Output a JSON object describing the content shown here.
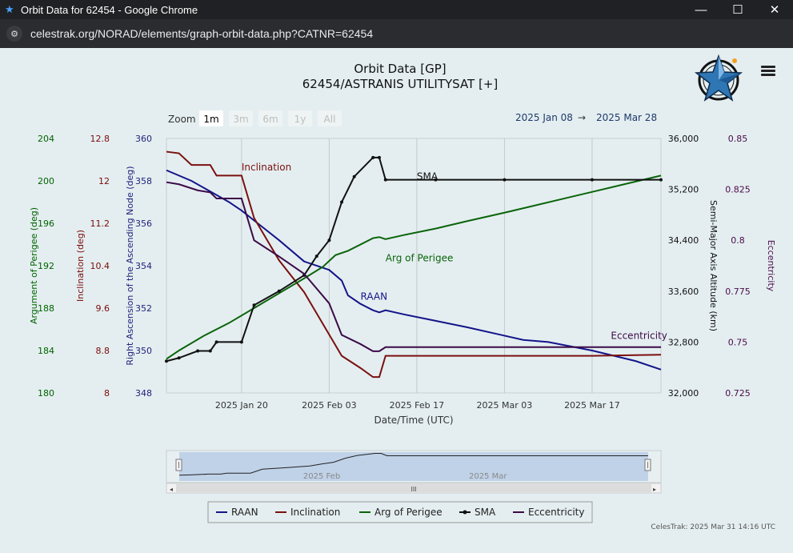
{
  "window": {
    "title": "Orbit Data for 62454 - Google Chrome",
    "minimize_icon": "minimize-icon",
    "maximize_icon": "maximize-icon",
    "close_icon": "close-icon"
  },
  "address_bar": {
    "url": "celestrak.org/NORAD/elements/graph-orbit-data.php?CATNR=62454"
  },
  "chart_data": {
    "type": "line",
    "title": "Orbit Data [GP]",
    "subtitle": "62454/ASTRANIS UTILITYSAT [+]",
    "xlabel": "Date/Time (UTC)",
    "zoom": {
      "label": "Zoom",
      "buttons": [
        "1m",
        "3m",
        "6m",
        "1y",
        "All"
      ],
      "selected": "1m"
    },
    "date_range": {
      "from": "2025 Jan 08",
      "arrow": "→",
      "to": "2025 Mar 28"
    },
    "x_range": [
      "2025-01-08",
      "2025-03-28"
    ],
    "x_ticks": [
      {
        "date": "2025-01-20",
        "label": "2025 Jan 20"
      },
      {
        "date": "2025-02-03",
        "label": "2025 Feb 03"
      },
      {
        "date": "2025-02-17",
        "label": "2025 Feb 17"
      },
      {
        "date": "2025-03-03",
        "label": "2025 Mar 03"
      },
      {
        "date": "2025-03-17",
        "label": "2025 Mar 17"
      }
    ],
    "axes": [
      {
        "id": "argp",
        "label": "Argument of Perigee (deg)",
        "range": [
          180,
          204
        ],
        "ticks": [
          "180",
          "184",
          "188",
          "192",
          "196",
          "200",
          "204"
        ],
        "color": "#006400",
        "side": "left"
      },
      {
        "id": "inc",
        "label": "Inclination (deg)",
        "range": [
          8,
          12.8
        ],
        "ticks": [
          "8",
          "8.8",
          "9.6",
          "10.4",
          "11.2",
          "12",
          "12.8"
        ],
        "color": "#7b0a0a",
        "side": "left"
      },
      {
        "id": "raan",
        "label": "Right Ascension of the Ascending Node (deg)",
        "range": [
          348,
          360
        ],
        "ticks": [
          "348",
          "350",
          "352",
          "354",
          "356",
          "358",
          "360"
        ],
        "color": "#1f1f7a",
        "side": "left"
      },
      {
        "id": "sma",
        "label": "Semi-Major Axis Altitude (km)",
        "range": [
          32000,
          36000
        ],
        "ticks": [
          "32,000",
          "32,800",
          "33,600",
          "34,400",
          "35,200",
          "36,000"
        ],
        "color": "#111111",
        "side": "right"
      },
      {
        "id": "ecc",
        "label": "Eccentricity",
        "range": [
          0.725,
          0.85
        ],
        "ticks": [
          "0.725",
          "0.75",
          "0.775",
          "0.8",
          "0.825",
          "0.85"
        ],
        "color": "#4a0a4a",
        "side": "right"
      }
    ],
    "series": [
      {
        "name": "RAAN",
        "axis": "raan",
        "color": "#14148a",
        "label_at": {
          "x": "2025-02-08",
          "y": 352.4
        },
        "points": [
          [
            "2025-01-08",
            358.5
          ],
          [
            "2025-01-12",
            358.0
          ],
          [
            "2025-01-15",
            357.5
          ],
          [
            "2025-01-18",
            357.0
          ],
          [
            "2025-01-20",
            356.6
          ],
          [
            "2025-01-23",
            355.9
          ],
          [
            "2025-01-26",
            355.2
          ],
          [
            "2025-01-30",
            354.2
          ],
          [
            "2025-02-03",
            353.8
          ],
          [
            "2025-02-05",
            353.3
          ],
          [
            "2025-02-06",
            352.6
          ],
          [
            "2025-02-08",
            352.2
          ],
          [
            "2025-02-10",
            351.9
          ],
          [
            "2025-02-11",
            351.8
          ],
          [
            "2025-02-12",
            351.9
          ],
          [
            "2025-02-15",
            351.7
          ],
          [
            "2025-02-20",
            351.4
          ],
          [
            "2025-02-25",
            351.1
          ],
          [
            "2025-03-03",
            350.7
          ],
          [
            "2025-03-06",
            350.5
          ],
          [
            "2025-03-10",
            350.4
          ],
          [
            "2025-03-17",
            350.0
          ],
          [
            "2025-03-24",
            349.5
          ],
          [
            "2025-03-28",
            349.1
          ]
        ]
      },
      {
        "name": "Inclination",
        "axis": "inc",
        "color": "#7b1010",
        "label_at": {
          "x": "2025-01-20",
          "y": 12.2
        },
        "points": [
          [
            "2025-01-08",
            12.55
          ],
          [
            "2025-01-10",
            12.52
          ],
          [
            "2025-01-12",
            12.3
          ],
          [
            "2025-01-15",
            12.3
          ],
          [
            "2025-01-16",
            12.1
          ],
          [
            "2025-01-20",
            12.1
          ],
          [
            "2025-01-22",
            11.3
          ],
          [
            "2025-01-26",
            10.5
          ],
          [
            "2025-01-30",
            9.9
          ],
          [
            "2025-02-03",
            9.1
          ],
          [
            "2025-02-05",
            8.7
          ],
          [
            "2025-02-08",
            8.47
          ],
          [
            "2025-02-10",
            8.3
          ],
          [
            "2025-02-11",
            8.3
          ],
          [
            "2025-02-12",
            8.7
          ],
          [
            "2025-02-20",
            8.7
          ],
          [
            "2025-03-03",
            8.7
          ],
          [
            "2025-03-17",
            8.7
          ],
          [
            "2025-03-28",
            8.72
          ]
        ]
      },
      {
        "name": "Arg of Perigee",
        "axis": "argp",
        "color": "#0a640a",
        "label_at": {
          "x": "2025-02-12",
          "y": 192.4
        },
        "points": [
          [
            "2025-01-08",
            183.2
          ],
          [
            "2025-01-10",
            184.0
          ],
          [
            "2025-01-14",
            185.4
          ],
          [
            "2025-01-18",
            186.6
          ],
          [
            "2025-01-22",
            188.0
          ],
          [
            "2025-01-26",
            189.4
          ],
          [
            "2025-01-30",
            190.8
          ],
          [
            "2025-02-02",
            191.9
          ],
          [
            "2025-02-04",
            193.0
          ],
          [
            "2025-02-06",
            193.4
          ],
          [
            "2025-02-10",
            194.6
          ],
          [
            "2025-02-11",
            194.7
          ],
          [
            "2025-02-12",
            194.5
          ],
          [
            "2025-02-15",
            194.9
          ],
          [
            "2025-02-20",
            195.5
          ],
          [
            "2025-02-25",
            196.2
          ],
          [
            "2025-03-03",
            197.0
          ],
          [
            "2025-03-08",
            197.7
          ],
          [
            "2025-03-13",
            198.4
          ],
          [
            "2025-03-18",
            199.1
          ],
          [
            "2025-03-23",
            199.8
          ],
          [
            "2025-03-28",
            200.5
          ]
        ]
      },
      {
        "name": "SMA",
        "axis": "sma",
        "color": "#111111",
        "markers": true,
        "label_at": {
          "x": "2025-02-17",
          "y": 35350
        },
        "points": [
          [
            "2025-01-08",
            32500
          ],
          [
            "2025-01-10",
            32550
          ],
          [
            "2025-01-13",
            32660
          ],
          [
            "2025-01-15",
            32660
          ],
          [
            "2025-01-16",
            32800
          ],
          [
            "2025-01-20",
            32800
          ],
          [
            "2025-01-22",
            33380
          ],
          [
            "2025-01-26",
            33600
          ],
          [
            "2025-01-30",
            33850
          ],
          [
            "2025-02-01",
            34150
          ],
          [
            "2025-02-03",
            34400
          ],
          [
            "2025-02-05",
            35000
          ],
          [
            "2025-02-07",
            35400
          ],
          [
            "2025-02-10",
            35700
          ],
          [
            "2025-02-11",
            35700
          ],
          [
            "2025-02-12",
            35350
          ],
          [
            "2025-02-20",
            35350
          ],
          [
            "2025-03-03",
            35350
          ],
          [
            "2025-03-17",
            35350
          ],
          [
            "2025-03-28",
            35350
          ]
        ]
      },
      {
        "name": "Eccentricity",
        "axis": "ecc",
        "color": "#3c0a48",
        "label_at": {
          "x": "2025-03-20",
          "y": 0.7515
        },
        "points": [
          [
            "2025-01-08",
            0.8285
          ],
          [
            "2025-01-10",
            0.8275
          ],
          [
            "2025-01-13",
            0.8245
          ],
          [
            "2025-01-15",
            0.8235
          ],
          [
            "2025-01-16",
            0.8205
          ],
          [
            "2025-01-20",
            0.8205
          ],
          [
            "2025-01-22",
            0.8
          ],
          [
            "2025-01-26",
            0.792
          ],
          [
            "2025-01-30",
            0.7835
          ],
          [
            "2025-02-03",
            0.769
          ],
          [
            "2025-02-05",
            0.7535
          ],
          [
            "2025-02-08",
            0.749
          ],
          [
            "2025-02-10",
            0.7455
          ],
          [
            "2025-02-11",
            0.7455
          ],
          [
            "2025-02-12",
            0.7475
          ],
          [
            "2025-02-20",
            0.7475
          ],
          [
            "2025-03-03",
            0.7475
          ],
          [
            "2025-03-17",
            0.7475
          ],
          [
            "2025-03-28",
            0.7475
          ]
        ]
      }
    ],
    "navigator": {
      "labels": [
        {
          "date": "2025-02-01",
          "label": "2025 Feb"
        },
        {
          "date": "2025-03-01",
          "label": "2025 Mar"
        }
      ],
      "grip": "III"
    },
    "legend": [
      "RAAN",
      "Inclination",
      "Arg of Perigee",
      "SMA",
      "Eccentricity"
    ],
    "legend_placement": "bottom",
    "grid": true
  },
  "logo_icon": "celestrak-star-logo-icon",
  "menu_icon": "hamburger-menu-icon",
  "footer": {
    "credit": "CelesTrak: 2025 Mar 31 14:16 UTC"
  }
}
